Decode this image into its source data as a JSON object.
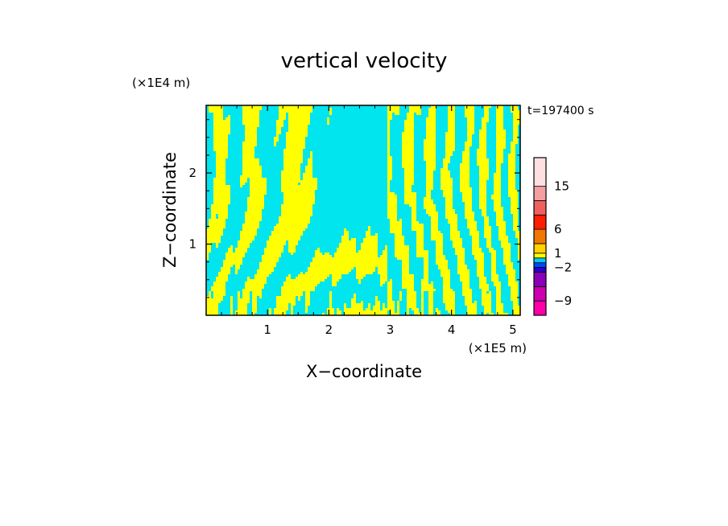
{
  "chart_data": {
    "type": "heatmap",
    "title": "vertical velocity",
    "xlabel": "X−coordinate",
    "ylabel": "Z−coordinate",
    "x_unit": "(×1E5 m)",
    "y_unit": "(×1E4 m)",
    "timestamp": "t=197400 s",
    "xlim": [
      0,
      5.12
    ],
    "ylim": [
      0,
      2.95
    ],
    "x_ticks": [
      1,
      2,
      3,
      4,
      5
    ],
    "x_tick_labels": [
      "1",
      "2",
      "3",
      "4",
      "5"
    ],
    "y_ticks": [
      1,
      2
    ],
    "y_tick_labels": [
      "1",
      "2"
    ],
    "field_colors": {
      "positive": "#ffff00",
      "negative": "#00e5ee"
    },
    "colorbar": {
      "levels": [
        {
          "from": -12,
          "to": -9,
          "color": "#ff00a8"
        },
        {
          "from": -9,
          "to": -6,
          "color": "#cc00b0"
        },
        {
          "from": -6,
          "to": -3,
          "color": "#8a00b8"
        },
        {
          "from": -3,
          "to": -2,
          "color": "#2a00c8"
        },
        {
          "from": -2,
          "to": -1,
          "color": "#0048ff"
        },
        {
          "from": -1,
          "to": 0,
          "color": "#00c8ff"
        },
        {
          "from": 0,
          "to": 1,
          "color": "#ffff00"
        },
        {
          "from": 1,
          "to": 3,
          "color": "#ffd200"
        },
        {
          "from": 3,
          "to": 6,
          "color": "#f07800"
        },
        {
          "from": 6,
          "to": 9,
          "color": "#ff1e00"
        },
        {
          "from": 9,
          "to": 12,
          "color": "#f06060"
        },
        {
          "from": 12,
          "to": 15,
          "color": "#f5a0a0"
        },
        {
          "from": 15,
          "to": 21,
          "color": "#ffe0e0"
        }
      ],
      "tick_values": [
        15,
        6,
        1,
        -2,
        -9
      ],
      "tick_labels": [
        "15",
        "6",
        "1",
        "−2",
        "−9"
      ]
    }
  }
}
